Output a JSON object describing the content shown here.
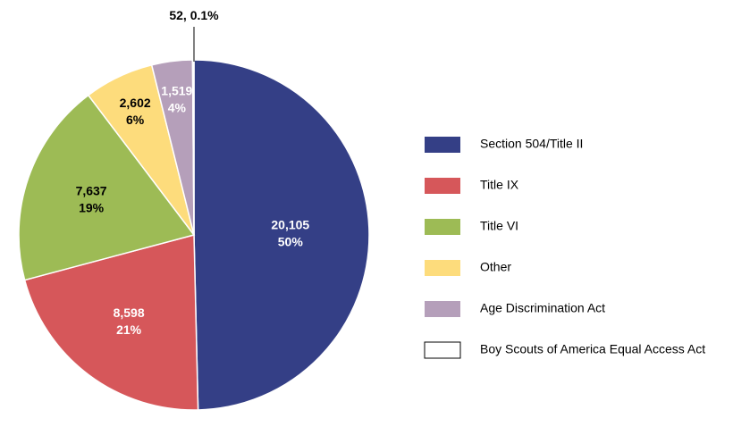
{
  "chart_data": {
    "type": "pie",
    "categories": [
      "Section 504/Title II",
      "Title IX",
      "Title VI",
      "Other",
      "Age Discrimination Act",
      "Boy Scouts of America Equal Access Act"
    ],
    "values": [
      20105,
      8598,
      7637,
      2602,
      1519,
      52
    ],
    "value_labels": [
      [
        "20,105",
        "50%"
      ],
      [
        "8,598",
        "21%"
      ],
      [
        "7,637",
        "19%"
      ],
      [
        "2,602",
        "6%"
      ],
      [
        "1,519",
        "4%"
      ],
      [
        "52, 0.1%"
      ]
    ],
    "colors": [
      "#343f86",
      "#d6575a",
      "#9dbb55",
      "#fddc7c",
      "#b59fba",
      "#ffffff"
    ],
    "label_colors": [
      "#ffffff",
      "#ffffff",
      "#000000",
      "#000000",
      "#ffffff",
      "#000000"
    ],
    "legend": "right"
  }
}
